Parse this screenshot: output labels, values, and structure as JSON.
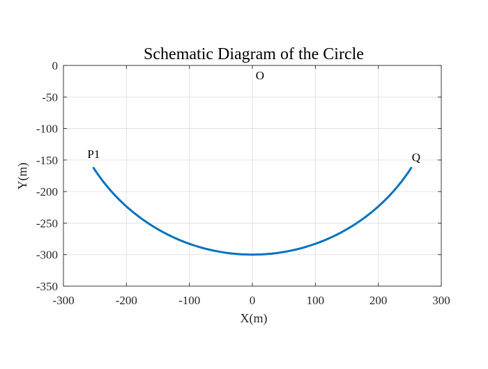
{
  "chart_data": {
    "type": "line",
    "title": "Schematic Diagram of the Circle",
    "xlabel": "X(m)",
    "ylabel": "Y(m)",
    "xlim": [
      -300,
      300
    ],
    "ylim": [
      -350,
      0
    ],
    "xticks": [
      -300,
      -200,
      -100,
      0,
      100,
      200,
      300
    ],
    "yticks": [
      0,
      -50,
      -100,
      -150,
      -200,
      -250,
      -300,
      -350
    ],
    "grid": true,
    "series": [
      {
        "color": "#0072BD",
        "circle": {
          "center": [
            0,
            0
          ],
          "radius": 300,
          "theta_start_deg": 212.8,
          "theta_end_deg": 327.2
        }
      }
    ],
    "annotations": [
      {
        "text": "O",
        "x": 12,
        "y": -22
      },
      {
        "text": "P1",
        "x": -252,
        "y": -147
      },
      {
        "text": "Q",
        "x": 260,
        "y": -152
      }
    ]
  }
}
